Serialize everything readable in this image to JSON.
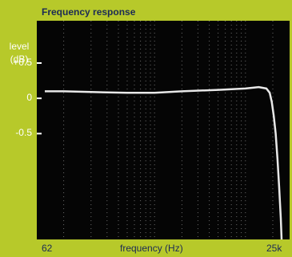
{
  "chart_data": {
    "type": "line",
    "title": "Frequency response",
    "ylabel_line1": "level",
    "ylabel_line2": "(dB)",
    "xlabel": "frequency (Hz)",
    "x_scale": "log",
    "xlim": [
      62,
      25000
    ],
    "ylim": [
      -2.0,
      1.1
    ],
    "grid": true,
    "yticks": [
      {
        "label": "+0.5",
        "value": 0.5
      },
      {
        "label": "0",
        "value": 0
      },
      {
        "label": "-0.5",
        "value": -0.5
      }
    ],
    "xticks": [
      {
        "label": "62",
        "value": 62
      },
      {
        "label": "25k",
        "value": 25000
      }
    ],
    "series": [
      {
        "line_color": "#e8e8e8",
        "x": [
          62,
          100,
          200,
          500,
          1000,
          2000,
          5000,
          10000,
          14000,
          17000,
          18500,
          19500,
          20500,
          21500,
          22500,
          23500,
          24500,
          25000
        ],
        "y": [
          0.1,
          0.1,
          0.09,
          0.08,
          0.08,
          0.1,
          0.12,
          0.14,
          0.16,
          0.14,
          0.08,
          -0.05,
          -0.25,
          -0.5,
          -0.85,
          -1.25,
          -1.7,
          -2.0
        ]
      }
    ]
  },
  "colors": {
    "background": "#b7c92a",
    "plot_background": "#050505",
    "grid": "#6d6d6d",
    "title_text": "#1b2a55"
  }
}
